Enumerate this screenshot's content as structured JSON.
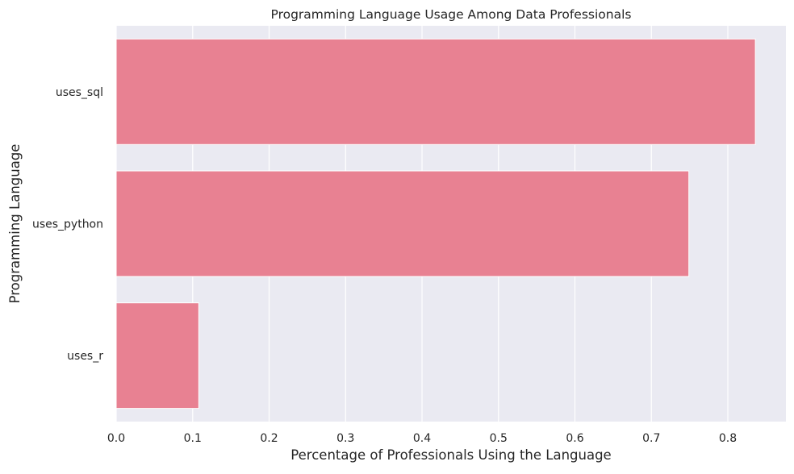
{
  "chart_data": {
    "type": "bar",
    "orientation": "horizontal",
    "title": "Programming Language Usage Among Data Professionals",
    "xlabel": "Percentage of Professionals Using the Language",
    "ylabel": "Programming Language",
    "categories": [
      "uses_sql",
      "uses_python",
      "uses_r"
    ],
    "values": [
      0.836,
      0.749,
      0.108
    ],
    "xlim": [
      0,
      0.876
    ],
    "xticks": [
      0.0,
      0.1,
      0.2,
      0.3,
      0.4,
      0.5,
      0.6,
      0.7,
      0.8
    ],
    "xtick_labels": [
      "0.0",
      "0.1",
      "0.2",
      "0.3",
      "0.4",
      "0.5",
      "0.6",
      "0.7",
      "0.8"
    ],
    "grid": true,
    "legend": "none",
    "colors": {
      "bar": "#e88192",
      "plot_background": "#eaeaf2",
      "grid": "#ffffff",
      "text": "#262626"
    }
  }
}
